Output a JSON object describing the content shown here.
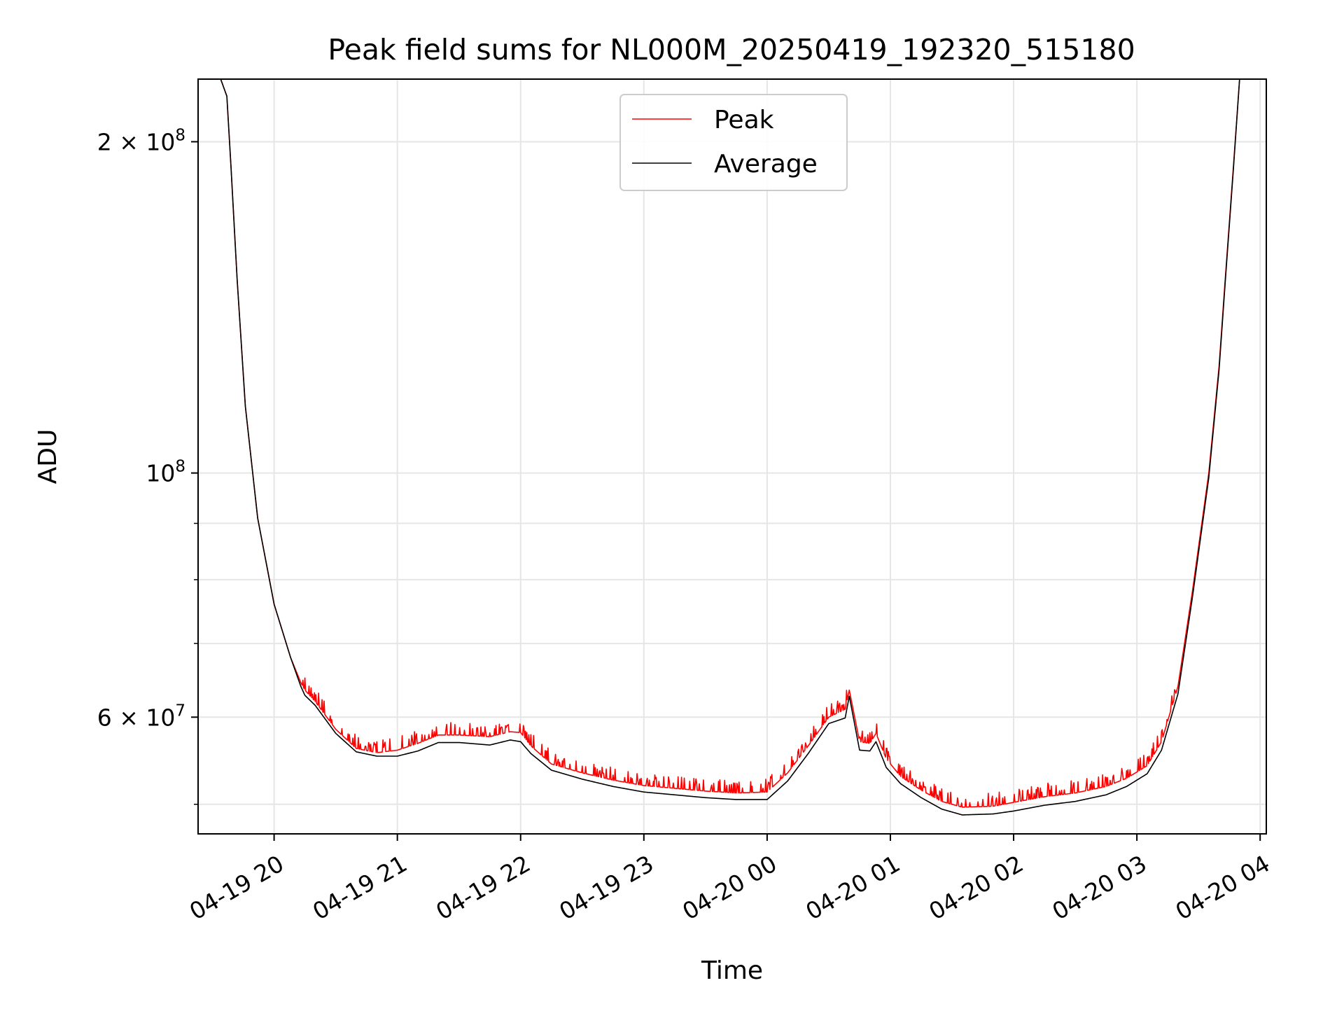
{
  "chart_data": {
    "type": "line",
    "title": "Peak field sums for NL000M_20250419_192320_515180",
    "xlabel": "Time",
    "ylabel": "ADU",
    "y_scale": "log",
    "grid": true,
    "legend_position": "top-center",
    "x_range": [
      "2025-04-19 19:23",
      "2025-04-20 04:03"
    ],
    "ylim": [
      47000000,
      228000000
    ],
    "x_ticks": [
      "04-19 20",
      "04-19 21",
      "04-19 22",
      "04-19 23",
      "04-20 00",
      "04-20 01",
      "04-20 02",
      "04-20 03",
      "04-20 04"
    ],
    "y_ticks": [
      {
        "value": 200000000,
        "mantissa": "2",
        "exponent": "8"
      },
      {
        "value": 100000000,
        "mantissa": "",
        "exponent": "8"
      },
      {
        "value": 60000000,
        "mantissa": "6",
        "exponent": "7"
      }
    ],
    "y_minor_ticks": [
      50000000,
      70000000,
      80000000,
      90000000
    ],
    "series": [
      {
        "name": "Peak",
        "color": "#ff0000",
        "x": [
          "2025-04-19 19:23",
          "2025-04-19 19:34",
          "2025-04-19 19:37",
          "2025-04-19 19:39",
          "2025-04-19 19:42",
          "2025-04-19 19:46",
          "2025-04-19 19:52",
          "2025-04-19 20:00",
          "2025-04-19 20:08",
          "2025-04-19 20:13",
          "2025-04-19 20:15",
          "2025-04-19 20:20",
          "2025-04-19 20:30",
          "2025-04-19 20:40",
          "2025-04-19 20:50",
          "2025-04-19 21:00",
          "2025-04-19 21:10",
          "2025-04-19 21:20",
          "2025-04-19 21:30",
          "2025-04-19 21:45",
          "2025-04-19 21:55",
          "2025-04-19 22:00",
          "2025-04-19 22:05",
          "2025-04-19 22:15",
          "2025-04-19 22:30",
          "2025-04-19 22:45",
          "2025-04-19 23:00",
          "2025-04-19 23:15",
          "2025-04-19 23:30",
          "2025-04-19 23:45",
          "2025-04-20 00:00",
          "2025-04-20 00:10",
          "2025-04-20 00:20",
          "2025-04-20 00:30",
          "2025-04-20 00:38",
          "2025-04-20 00:40",
          "2025-04-20 00:45",
          "2025-04-20 00:50",
          "2025-04-20 00:53",
          "2025-04-20 00:58",
          "2025-04-20 01:05",
          "2025-04-20 01:15",
          "2025-04-20 01:25",
          "2025-04-20 01:35",
          "2025-04-20 01:50",
          "2025-04-20 02:00",
          "2025-04-20 02:15",
          "2025-04-20 02:30",
          "2025-04-20 02:45",
          "2025-04-20 02:55",
          "2025-04-20 03:05",
          "2025-04-20 03:12",
          "2025-04-20 03:20",
          "2025-04-20 03:27",
          "2025-04-20 03:35",
          "2025-04-20 03:40",
          "2025-04-20 03:43",
          "2025-04-20 03:47",
          "2025-04-20 03:50",
          "2025-04-20 04:03"
        ],
        "y": [
          228000000,
          228000000,
          220000000,
          190000000,
          150000000,
          115000000,
          91000000,
          76000000,
          68000000,
          64500000,
          63500000,
          62000000,
          58500000,
          56200000,
          55700000,
          56000000,
          56800000,
          57800000,
          57800000,
          57600000,
          58200000,
          58100000,
          56500000,
          54400000,
          53400000,
          52600000,
          52000000,
          51700000,
          51400000,
          51200000,
          51300000,
          53400000,
          56500000,
          60000000,
          61000000,
          63500000,
          57000000,
          56800000,
          58000000,
          55000000,
          53000000,
          51500000,
          50300000,
          49700000,
          49800000,
          50200000,
          50800000,
          51200000,
          51900000,
          52800000,
          54200000,
          57000000,
          64000000,
          78000000,
          100000000,
          125000000,
          150000000,
          190000000,
          228000000,
          228000000
        ],
        "spikes": {
          "frequency": "dense",
          "amplitude_fraction": 0.02
        }
      },
      {
        "name": "Average",
        "color": "#000000",
        "x": [
          "2025-04-19 19:23",
          "2025-04-19 19:34",
          "2025-04-19 19:37",
          "2025-04-19 19:39",
          "2025-04-19 19:42",
          "2025-04-19 19:46",
          "2025-04-19 19:52",
          "2025-04-19 20:00",
          "2025-04-19 20:08",
          "2025-04-19 20:13",
          "2025-04-19 20:15",
          "2025-04-19 20:20",
          "2025-04-19 20:30",
          "2025-04-19 20:40",
          "2025-04-19 20:50",
          "2025-04-19 21:00",
          "2025-04-19 21:10",
          "2025-04-19 21:20",
          "2025-04-19 21:30",
          "2025-04-19 21:45",
          "2025-04-19 21:55",
          "2025-04-19 22:00",
          "2025-04-19 22:05",
          "2025-04-19 22:15",
          "2025-04-19 22:30",
          "2025-04-19 22:45",
          "2025-04-19 23:00",
          "2025-04-19 23:15",
          "2025-04-19 23:30",
          "2025-04-19 23:45",
          "2025-04-20 00:00",
          "2025-04-20 00:10",
          "2025-04-20 00:20",
          "2025-04-20 00:30",
          "2025-04-20 00:38",
          "2025-04-20 00:40",
          "2025-04-20 00:45",
          "2025-04-20 00:50",
          "2025-04-20 00:53",
          "2025-04-20 00:58",
          "2025-04-20 01:05",
          "2025-04-20 01:15",
          "2025-04-20 01:25",
          "2025-04-20 01:35",
          "2025-04-20 01:50",
          "2025-04-20 02:00",
          "2025-04-20 02:15",
          "2025-04-20 02:30",
          "2025-04-20 02:45",
          "2025-04-20 02:55",
          "2025-04-20 03:05",
          "2025-04-20 03:12",
          "2025-04-20 03:20",
          "2025-04-20 03:27",
          "2025-04-20 03:35",
          "2025-04-20 03:40",
          "2025-04-20 03:43",
          "2025-04-20 03:47",
          "2025-04-20 03:50",
          "2025-04-20 04:03"
        ],
        "y": [
          228000000,
          228000000,
          220000000,
          190000000,
          150000000,
          115000000,
          91000000,
          76000000,
          68000000,
          64000000,
          62800000,
          61500000,
          58000000,
          55800000,
          55300000,
          55300000,
          55900000,
          56900000,
          56900000,
          56600000,
          57200000,
          57000000,
          55600000,
          53700000,
          52700000,
          51900000,
          51300000,
          51000000,
          50700000,
          50500000,
          50500000,
          52500000,
          55600000,
          59200000,
          59900000,
          62700000,
          56000000,
          55900000,
          57000000,
          54000000,
          52200000,
          50700000,
          49500000,
          48900000,
          49000000,
          49300000,
          49900000,
          50300000,
          51000000,
          51900000,
          53300000,
          56000000,
          63000000,
          77000000,
          99000000,
          124000000,
          149000000,
          189000000,
          228000000,
          228000000
        ]
      }
    ]
  }
}
